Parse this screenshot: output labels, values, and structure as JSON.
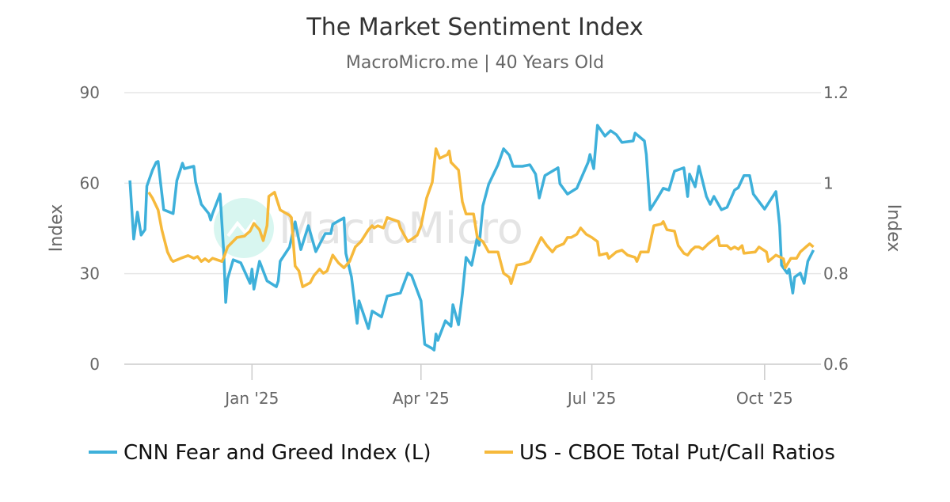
{
  "chart_data": {
    "type": "line",
    "title": "The Market Sentiment Index",
    "subtitle": "MacroMicro.me | 40 Years Old",
    "watermark": "MacroMicro",
    "y_left": {
      "label": "Index",
      "range": [
        0,
        90
      ],
      "ticks": [
        "0",
        "30",
        "60",
        "90"
      ],
      "tick_values": [
        0,
        30,
        60,
        90
      ]
    },
    "y_right": {
      "label": "Index",
      "range": [
        0.6,
        1.2
      ],
      "ticks": [
        "0.6",
        "0.8",
        "1",
        "1.2"
      ],
      "tick_values": [
        0.6,
        0.8,
        1.0,
        1.2
      ]
    },
    "x": {
      "range": [
        "2024-10-25",
        "2025-10-31"
      ],
      "ticks": [
        {
          "label": "Jan '25",
          "date": "2025-01-01"
        },
        {
          "label": "Apr '25",
          "date": "2025-04-01"
        },
        {
          "label": "Jul '25",
          "date": "2025-07-01"
        },
        {
          "label": "Oct '25",
          "date": "2025-10-01"
        }
      ]
    },
    "grid": true,
    "legend_placement": "bottom",
    "series": [
      {
        "name": "CNN Fear and Greed Index (L)",
        "axis": "left",
        "color": "#3eb0da",
        "points": [
          [
            "2024-10-28",
            60.9
          ],
          [
            "2024-10-30",
            41.5
          ],
          [
            "2024-11-01",
            50.4
          ],
          [
            "2024-11-03",
            42.8
          ],
          [
            "2024-11-05",
            44.6
          ],
          [
            "2024-11-06",
            59.0
          ],
          [
            "2024-11-09",
            64.3
          ],
          [
            "2024-11-11",
            66.9
          ],
          [
            "2024-11-12",
            67.2
          ],
          [
            "2024-11-15",
            51.2
          ],
          [
            "2024-11-20",
            49.9
          ],
          [
            "2024-11-22",
            60.9
          ],
          [
            "2024-11-25",
            66.6
          ],
          [
            "2024-11-26",
            64.8
          ],
          [
            "2024-12-01",
            65.6
          ],
          [
            "2024-12-02",
            60.4
          ],
          [
            "2024-12-05",
            53.0
          ],
          [
            "2024-12-09",
            49.9
          ],
          [
            "2024-12-10",
            47.8
          ],
          [
            "2024-12-11",
            49.9
          ],
          [
            "2024-12-15",
            56.4
          ],
          [
            "2024-12-17",
            36.7
          ],
          [
            "2024-12-18",
            20.5
          ],
          [
            "2024-12-19",
            28.3
          ],
          [
            "2024-12-22",
            34.6
          ],
          [
            "2024-12-26",
            33.6
          ],
          [
            "2024-12-31",
            26.8
          ],
          [
            "2025-01-01",
            31.5
          ],
          [
            "2025-01-02",
            24.9
          ],
          [
            "2025-01-05",
            34.1
          ],
          [
            "2025-01-09",
            27.6
          ],
          [
            "2025-01-14",
            25.7
          ],
          [
            "2025-01-15",
            27.6
          ],
          [
            "2025-01-16",
            34.1
          ],
          [
            "2025-01-21",
            38.8
          ],
          [
            "2025-01-24",
            47.2
          ],
          [
            "2025-01-27",
            38.0
          ],
          [
            "2025-01-31",
            45.9
          ],
          [
            "2025-02-04",
            37.3
          ],
          [
            "2025-02-09",
            43.3
          ],
          [
            "2025-02-12",
            43.3
          ],
          [
            "2025-02-13",
            46.4
          ],
          [
            "2025-02-19",
            48.5
          ],
          [
            "2025-02-20",
            36.7
          ],
          [
            "2025-02-23",
            28.9
          ],
          [
            "2025-02-26",
            13.6
          ],
          [
            "2025-02-27",
            21.0
          ],
          [
            "2025-03-04",
            11.8
          ],
          [
            "2025-03-06",
            17.6
          ],
          [
            "2025-03-11",
            15.7
          ],
          [
            "2025-03-14",
            22.6
          ],
          [
            "2025-03-21",
            23.6
          ],
          [
            "2025-03-25",
            30.2
          ],
          [
            "2025-03-27",
            29.4
          ],
          [
            "2025-04-01",
            21.0
          ],
          [
            "2025-04-03",
            6.6
          ],
          [
            "2025-04-07",
            5.2
          ],
          [
            "2025-04-08",
            4.7
          ],
          [
            "2025-04-09",
            10.0
          ],
          [
            "2025-04-10",
            7.9
          ],
          [
            "2025-04-14",
            14.4
          ],
          [
            "2025-04-17",
            12.6
          ],
          [
            "2025-04-18",
            19.7
          ],
          [
            "2025-04-21",
            13.1
          ],
          [
            "2025-04-23",
            23.1
          ],
          [
            "2025-04-25",
            35.4
          ],
          [
            "2025-04-28",
            32.8
          ],
          [
            "2025-05-01",
            42.0
          ],
          [
            "2025-05-02",
            39.4
          ],
          [
            "2025-05-04",
            52.5
          ],
          [
            "2025-05-07",
            59.6
          ],
          [
            "2025-05-12",
            66.1
          ],
          [
            "2025-05-15",
            71.4
          ],
          [
            "2025-05-18",
            69.3
          ],
          [
            "2025-05-20",
            65.6
          ],
          [
            "2025-05-25",
            65.6
          ],
          [
            "2025-05-29",
            66.1
          ],
          [
            "2025-06-01",
            63.0
          ],
          [
            "2025-06-03",
            55.1
          ],
          [
            "2025-06-06",
            62.5
          ],
          [
            "2025-06-13",
            65.1
          ],
          [
            "2025-06-14",
            59.8
          ],
          [
            "2025-06-18",
            56.4
          ],
          [
            "2025-06-23",
            58.3
          ],
          [
            "2025-06-29",
            66.9
          ],
          [
            "2025-06-30",
            69.5
          ],
          [
            "2025-07-02",
            64.8
          ],
          [
            "2025-07-04",
            79.2
          ],
          [
            "2025-07-08",
            75.6
          ],
          [
            "2025-07-11",
            77.4
          ],
          [
            "2025-07-14",
            76.1
          ],
          [
            "2025-07-17",
            73.5
          ],
          [
            "2025-07-23",
            74.0
          ],
          [
            "2025-07-24",
            76.6
          ],
          [
            "2025-07-29",
            74.0
          ],
          [
            "2025-07-30",
            69.5
          ],
          [
            "2025-08-01",
            51.2
          ],
          [
            "2025-08-05",
            55.1
          ],
          [
            "2025-08-08",
            58.3
          ],
          [
            "2025-08-11",
            57.7
          ],
          [
            "2025-08-14",
            64.0
          ],
          [
            "2025-08-19",
            65.1
          ],
          [
            "2025-08-21",
            55.6
          ],
          [
            "2025-08-22",
            63.0
          ],
          [
            "2025-08-25",
            58.8
          ],
          [
            "2025-08-27",
            65.6
          ],
          [
            "2025-08-31",
            55.6
          ],
          [
            "2025-09-02",
            53.0
          ],
          [
            "2025-09-04",
            55.6
          ],
          [
            "2025-09-08",
            51.2
          ],
          [
            "2025-09-11",
            52.0
          ],
          [
            "2025-09-15",
            57.7
          ],
          [
            "2025-09-17",
            58.5
          ],
          [
            "2025-09-20",
            62.5
          ],
          [
            "2025-09-23",
            62.5
          ],
          [
            "2025-09-25",
            56.4
          ],
          [
            "2025-10-01",
            51.4
          ],
          [
            "2025-10-07",
            57.2
          ],
          [
            "2025-10-08",
            52.0
          ],
          [
            "2025-10-09",
            45.9
          ],
          [
            "2025-10-10",
            32.8
          ],
          [
            "2025-10-13",
            30.2
          ],
          [
            "2025-10-14",
            31.5
          ],
          [
            "2025-10-16",
            23.6
          ],
          [
            "2025-10-17",
            28.9
          ],
          [
            "2025-10-20",
            30.2
          ],
          [
            "2025-10-22",
            26.8
          ],
          [
            "2025-10-24",
            34.1
          ],
          [
            "2025-10-27",
            37.8
          ]
        ]
      },
      {
        "name": "US - CBOE Total Put/Call Ratios",
        "axis": "right",
        "color": "#f6b93b",
        "points": [
          [
            "2024-11-07",
            0.98
          ],
          [
            "2024-11-09",
            0.967
          ],
          [
            "2024-11-12",
            0.941
          ],
          [
            "2024-11-14",
            0.897
          ],
          [
            "2024-11-17",
            0.848
          ],
          [
            "2024-11-19",
            0.831
          ],
          [
            "2024-11-20",
            0.827
          ],
          [
            "2024-11-24",
            0.834
          ],
          [
            "2024-11-28",
            0.84
          ],
          [
            "2024-12-01",
            0.834
          ],
          [
            "2024-12-03",
            0.838
          ],
          [
            "2024-12-05",
            0.827
          ],
          [
            "2024-12-07",
            0.833
          ],
          [
            "2024-12-09",
            0.827
          ],
          [
            "2024-12-11",
            0.834
          ],
          [
            "2024-12-16",
            0.827
          ],
          [
            "2024-12-17",
            0.836
          ],
          [
            "2024-12-19",
            0.859
          ],
          [
            "2024-12-24",
            0.88
          ],
          [
            "2024-12-28",
            0.883
          ],
          [
            "2024-12-29",
            0.887
          ],
          [
            "2024-12-31",
            0.894
          ],
          [
            "2025-01-02",
            0.911
          ],
          [
            "2025-01-05",
            0.897
          ],
          [
            "2025-01-07",
            0.873
          ],
          [
            "2025-01-09",
            0.906
          ],
          [
            "2025-01-10",
            0.971
          ],
          [
            "2025-01-13",
            0.98
          ],
          [
            "2025-01-14",
            0.967
          ],
          [
            "2025-01-16",
            0.941
          ],
          [
            "2025-01-21",
            0.929
          ],
          [
            "2025-01-22",
            0.924
          ],
          [
            "2025-01-24",
            0.817
          ],
          [
            "2025-01-26",
            0.806
          ],
          [
            "2025-01-28",
            0.771
          ],
          [
            "2025-02-01",
            0.78
          ],
          [
            "2025-02-03",
            0.796
          ],
          [
            "2025-02-06",
            0.81
          ],
          [
            "2025-02-08",
            0.801
          ],
          [
            "2025-02-10",
            0.806
          ],
          [
            "2025-02-13",
            0.841
          ],
          [
            "2025-02-16",
            0.824
          ],
          [
            "2025-02-19",
            0.813
          ],
          [
            "2025-02-22",
            0.827
          ],
          [
            "2025-02-25",
            0.859
          ],
          [
            "2025-02-28",
            0.871
          ],
          [
            "2025-03-04",
            0.897
          ],
          [
            "2025-03-06",
            0.906
          ],
          [
            "2025-03-07",
            0.901
          ],
          [
            "2025-03-09",
            0.906
          ],
          [
            "2025-03-12",
            0.901
          ],
          [
            "2025-03-14",
            0.924
          ],
          [
            "2025-03-18",
            0.918
          ],
          [
            "2025-03-20",
            0.915
          ],
          [
            "2025-03-21",
            0.901
          ],
          [
            "2025-03-25",
            0.871
          ],
          [
            "2025-03-27",
            0.876
          ],
          [
            "2025-03-30",
            0.885
          ],
          [
            "2025-04-01",
            0.906
          ],
          [
            "2025-04-04",
            0.967
          ],
          [
            "2025-04-07",
            1.002
          ],
          [
            "2025-04-09",
            1.076
          ],
          [
            "2025-04-11",
            1.055
          ],
          [
            "2025-04-15",
            1.063
          ],
          [
            "2025-04-16",
            1.071
          ],
          [
            "2025-04-17",
            1.046
          ],
          [
            "2025-04-21",
            1.029
          ],
          [
            "2025-04-23",
            0.959
          ],
          [
            "2025-04-25",
            0.932
          ],
          [
            "2025-04-29",
            0.932
          ],
          [
            "2025-05-01",
            0.88
          ],
          [
            "2025-05-04",
            0.871
          ],
          [
            "2025-05-07",
            0.848
          ],
          [
            "2025-05-12",
            0.848
          ],
          [
            "2025-05-15",
            0.801
          ],
          [
            "2025-05-18",
            0.792
          ],
          [
            "2025-05-19",
            0.778
          ],
          [
            "2025-05-22",
            0.819
          ],
          [
            "2025-05-26",
            0.822
          ],
          [
            "2025-05-29",
            0.827
          ],
          [
            "2025-06-01",
            0.854
          ],
          [
            "2025-06-04",
            0.88
          ],
          [
            "2025-06-07",
            0.862
          ],
          [
            "2025-06-10",
            0.848
          ],
          [
            "2025-06-12",
            0.859
          ],
          [
            "2025-06-16",
            0.866
          ],
          [
            "2025-06-18",
            0.88
          ],
          [
            "2025-06-20",
            0.88
          ],
          [
            "2025-06-23",
            0.887
          ],
          [
            "2025-06-25",
            0.901
          ],
          [
            "2025-06-28",
            0.887
          ],
          [
            "2025-07-01",
            0.88
          ],
          [
            "2025-07-04",
            0.871
          ],
          [
            "2025-07-05",
            0.841
          ],
          [
            "2025-07-09",
            0.845
          ],
          [
            "2025-07-10",
            0.834
          ],
          [
            "2025-07-14",
            0.848
          ],
          [
            "2025-07-17",
            0.852
          ],
          [
            "2025-07-20",
            0.841
          ],
          [
            "2025-07-24",
            0.836
          ],
          [
            "2025-07-25",
            0.827
          ],
          [
            "2025-07-27",
            0.848
          ],
          [
            "2025-07-31",
            0.848
          ],
          [
            "2025-08-03",
            0.906
          ],
          [
            "2025-08-07",
            0.91
          ],
          [
            "2025-08-08",
            0.915
          ],
          [
            "2025-08-10",
            0.897
          ],
          [
            "2025-08-14",
            0.894
          ],
          [
            "2025-08-16",
            0.862
          ],
          [
            "2025-08-19",
            0.845
          ],
          [
            "2025-08-21",
            0.841
          ],
          [
            "2025-08-23",
            0.852
          ],
          [
            "2025-08-25",
            0.859
          ],
          [
            "2025-08-27",
            0.859
          ],
          [
            "2025-08-29",
            0.854
          ],
          [
            "2025-09-01",
            0.866
          ],
          [
            "2025-09-04",
            0.876
          ],
          [
            "2025-09-06",
            0.883
          ],
          [
            "2025-09-07",
            0.862
          ],
          [
            "2025-09-11",
            0.862
          ],
          [
            "2025-09-13",
            0.854
          ],
          [
            "2025-09-15",
            0.859
          ],
          [
            "2025-09-17",
            0.854
          ],
          [
            "2025-09-19",
            0.862
          ],
          [
            "2025-09-20",
            0.845
          ],
          [
            "2025-09-26",
            0.848
          ],
          [
            "2025-09-28",
            0.859
          ],
          [
            "2025-10-02",
            0.848
          ],
          [
            "2025-10-03",
            0.827
          ],
          [
            "2025-10-07",
            0.841
          ],
          [
            "2025-10-11",
            0.833
          ],
          [
            "2025-10-12",
            0.813
          ],
          [
            "2025-10-15",
            0.834
          ],
          [
            "2025-10-18",
            0.834
          ],
          [
            "2025-10-20",
            0.848
          ],
          [
            "2025-10-23",
            0.859
          ],
          [
            "2025-10-25",
            0.866
          ],
          [
            "2025-10-27",
            0.859
          ]
        ]
      }
    ]
  }
}
